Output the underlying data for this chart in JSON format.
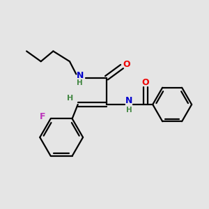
{
  "background_color": "#e5e5e5",
  "bond_color": "#000000",
  "N_color": "#0000cc",
  "O_color": "#ee0000",
  "F_color": "#bb33bb",
  "H_color": "#448844",
  "line_width": 1.6,
  "figsize": [
    3.0,
    3.0
  ],
  "dpi": 100,
  "xlim": [
    0,
    10
  ],
  "ylim": [
    0,
    10
  ]
}
